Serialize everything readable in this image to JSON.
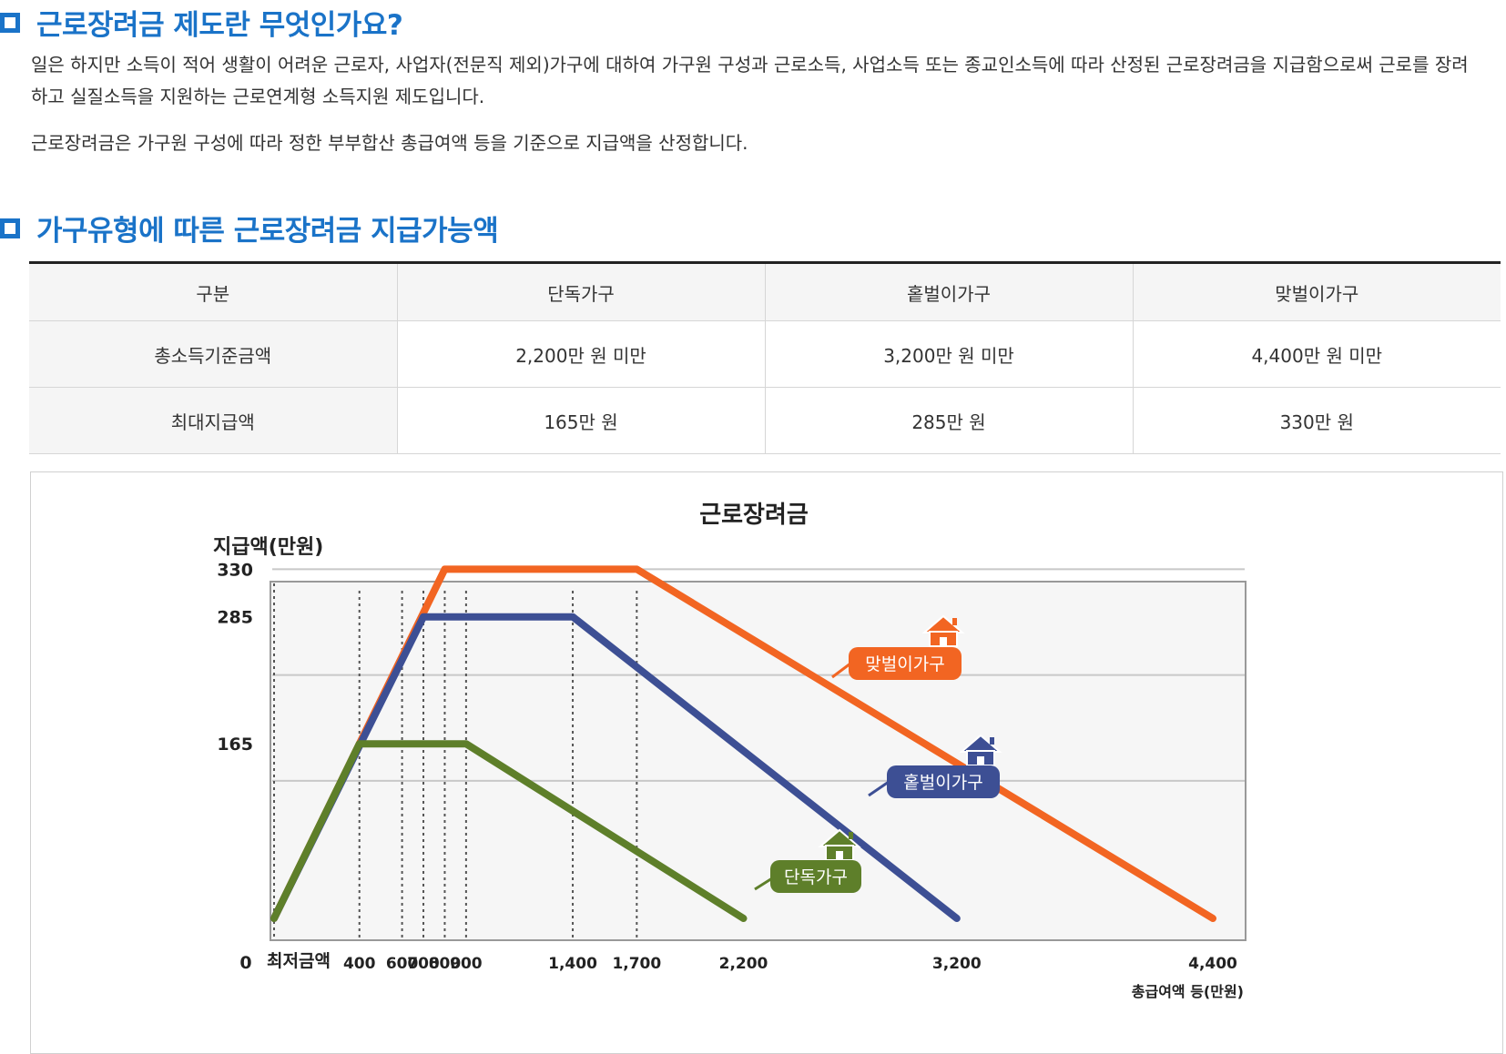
{
  "section1": {
    "title": "근로장려금 제도란 무엇인가요?",
    "para1": "일은 하지만 소득이 적어 생활이 어려운 근로자, 사업자(전문직 제외)가구에 대하여 가구원 구성과 근로소득, 사업소득 또는 종교인소득에 따라 산정된 근로장려금을 지급함으로써 근로를 장려하고 실질소득을 지원하는 근로연계형 소득지원 제도입니다.",
    "para2": "근로장려금은 가구원 구성에 따라 정한 부부합산 총급여액 등을 기준으로 지급액을 산정합니다."
  },
  "section2": {
    "title": "가구유형에 따른 근로장려금 지급가능액"
  },
  "table": {
    "headers": [
      "구분",
      "단독가구",
      "홑벌이가구",
      "맞벌이가구"
    ],
    "rows": [
      [
        "총소득기준금액",
        "2,200만 원 미만",
        "3,200만 원 미만",
        "4,400만 원 미만"
      ],
      [
        "최대지급액",
        "165만 원",
        "285만 원",
        "330만 원"
      ]
    ]
  },
  "chart_data": {
    "type": "line",
    "title": "근로장려금",
    "ylabel": "지급액(만원)",
    "xlabel": "총급여액 등(만원)",
    "x_origin_label": "0",
    "x_min_label": "최저금액",
    "xlim": [
      0,
      4400
    ],
    "ylim": [
      0,
      400
    ],
    "y_ticks": [
      330,
      285,
      165
    ],
    "x_ticks": [
      {
        "value": 400,
        "label": "400"
      },
      {
        "value": 600,
        "label": "600"
      },
      {
        "value": 700,
        "label": "700"
      },
      {
        "value": 800,
        "label": "800"
      },
      {
        "value": 900,
        "label": "900"
      },
      {
        "value": 1400,
        "label": "1,400"
      },
      {
        "value": 1700,
        "label": "1,700"
      },
      {
        "value": 2200,
        "label": "2,200"
      },
      {
        "value": 3200,
        "label": "3,200"
      },
      {
        "value": 4400,
        "label": "4,400"
      }
    ],
    "grid": true,
    "series": [
      {
        "name": "맞벌이가구",
        "color": "#f26522",
        "points": [
          [
            0,
            0
          ],
          [
            800,
            330
          ],
          [
            1700,
            330
          ],
          [
            4400,
            0
          ]
        ]
      },
      {
        "name": "홑벌이가구",
        "color": "#3d4f94",
        "points": [
          [
            0,
            0
          ],
          [
            700,
            285
          ],
          [
            1400,
            285
          ],
          [
            3200,
            0
          ]
        ]
      },
      {
        "name": "단독가구",
        "color": "#5e7f2a",
        "points": [
          [
            0,
            0
          ],
          [
            400,
            165
          ],
          [
            900,
            165
          ],
          [
            2200,
            0
          ]
        ]
      }
    ],
    "icon": "house-icon"
  }
}
